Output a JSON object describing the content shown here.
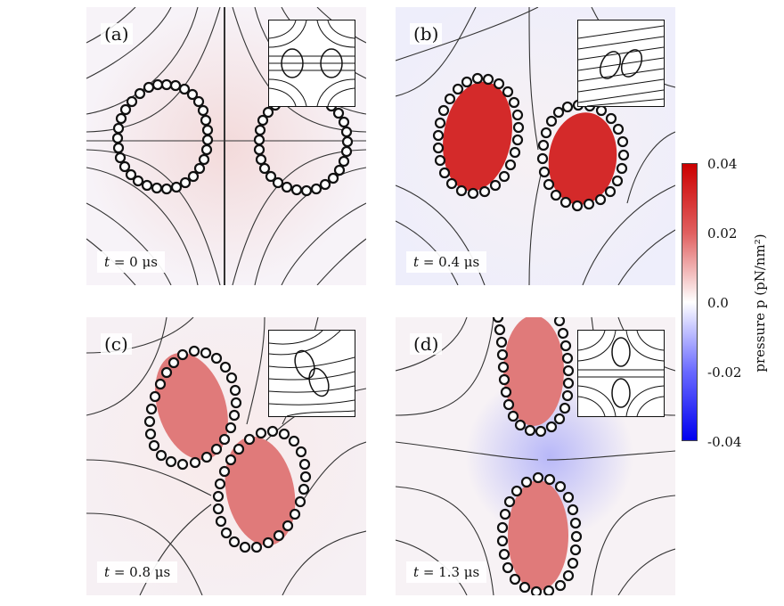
{
  "panels": [
    {
      "letter": "(a)",
      "time_var": "t",
      "time_value": "= 0 μs"
    },
    {
      "letter": "(b)",
      "time_var": "t",
      "time_value": "= 0.4 μs"
    },
    {
      "letter": "(c)",
      "time_var": "t",
      "time_value": "= 0.8 μs"
    },
    {
      "letter": "(d)",
      "time_var": "t",
      "time_value": "= 1.3 μs"
    }
  ],
  "colorbar": {
    "ticks": [
      "0.04",
      "0.02",
      "0.0",
      "-0.02",
      "-0.04"
    ],
    "title": "pressure p (pN/nm²)",
    "colors": {
      "max": "#cc0000",
      "mid": "#ffffff",
      "min": "#0000ee"
    }
  },
  "colors": {
    "bead_stroke": "#111111",
    "streamline": "#333333",
    "vesicle_a": "#ffffff",
    "vesicle_b": "#d42a2a",
    "vesicle_c": "#e07a7a"
  }
}
